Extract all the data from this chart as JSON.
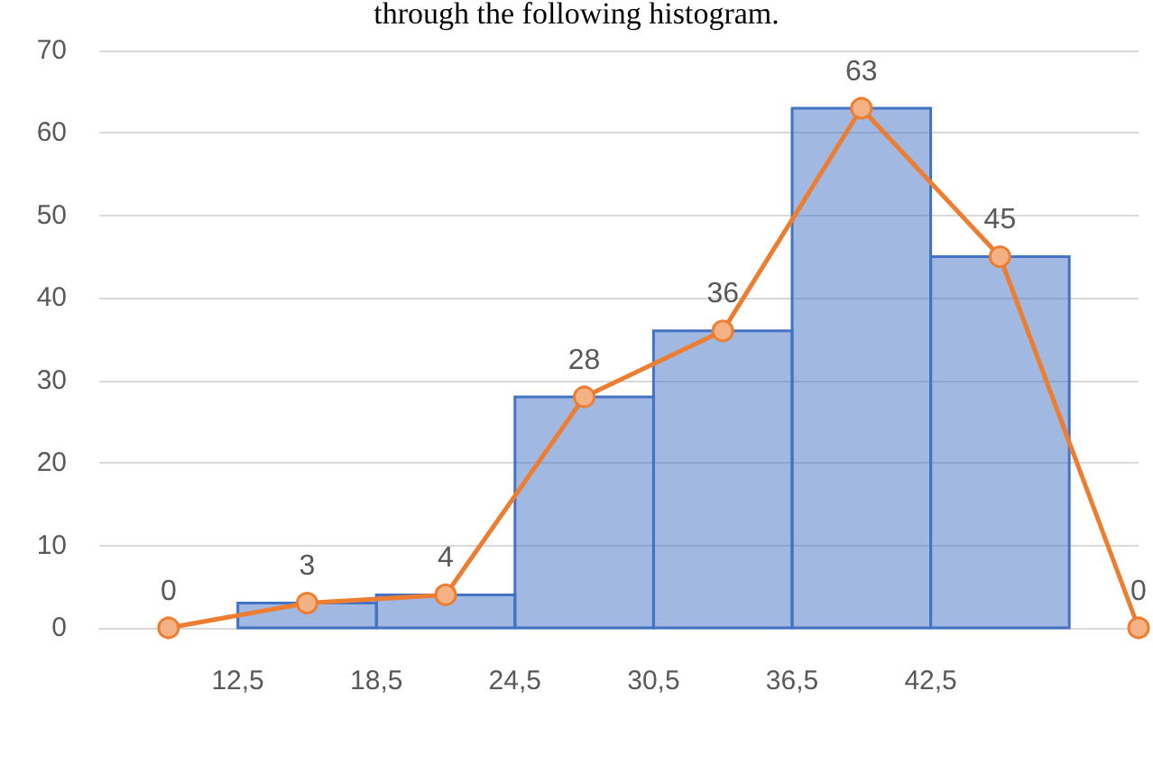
{
  "chart_data": {
    "type": "histogram",
    "title": "through the following histogram.",
    "xlim": [
      6.5,
      51.5
    ],
    "xticks": [
      {
        "value": 12.5,
        "label": "12,5"
      },
      {
        "value": 18.5,
        "label": "18,5"
      },
      {
        "value": 24.5,
        "label": "24,5"
      },
      {
        "value": 30.5,
        "label": "30,5"
      },
      {
        "value": 36.5,
        "label": "36,5"
      },
      {
        "value": 42.5,
        "label": "42,5"
      }
    ],
    "ylim": [
      0,
      70
    ],
    "yticks": [
      0,
      10,
      20,
      30,
      40,
      50,
      60,
      70
    ],
    "grid": "y",
    "series": [
      {
        "type": "histogram",
        "bins": [
          12.5,
          18.5,
          24.5,
          30.5,
          36.5,
          42.5,
          48.5
        ],
        "values": [
          3,
          4,
          28,
          36,
          63,
          45
        ],
        "color": "#4472c4"
      },
      {
        "type": "line",
        "x": [
          9.5,
          15.5,
          21.5,
          27.5,
          33.5,
          39.5,
          45.5,
          51.5
        ],
        "values": [
          0,
          3,
          4,
          28,
          36,
          63,
          45,
          0
        ],
        "color": "#ed7d31",
        "marker": "circle",
        "data_labels": true
      }
    ]
  }
}
